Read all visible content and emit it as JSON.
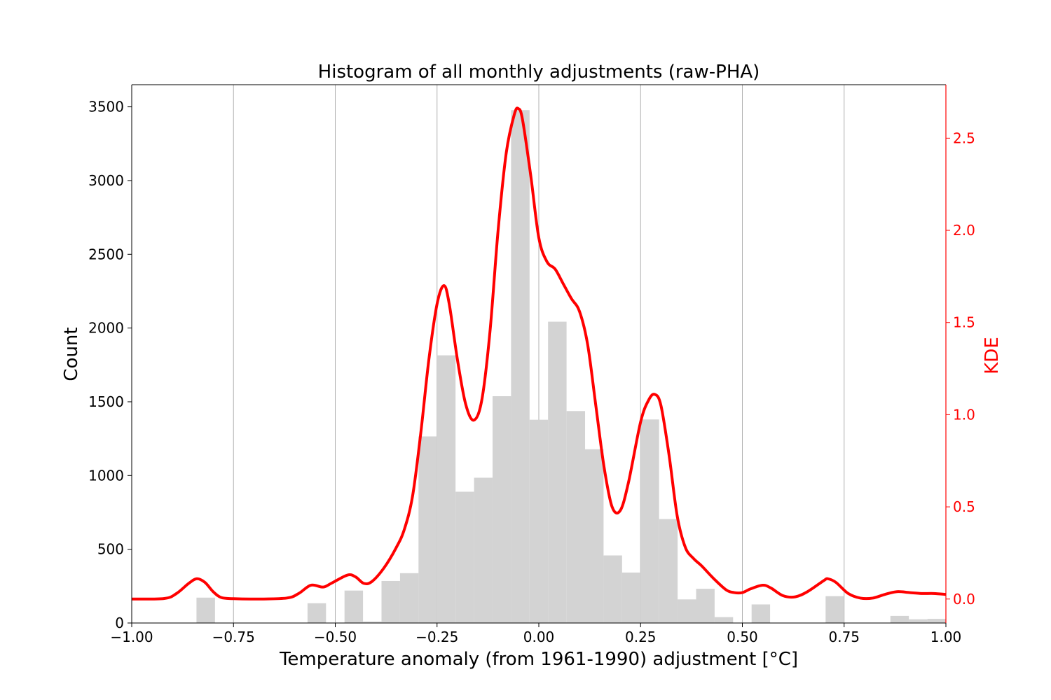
{
  "chart_data": {
    "type": "bar",
    "title": "Histogram of all monthly adjustments (raw-PHA)",
    "xlabel": "Temperature anomaly (from 1961-1990) adjustment [°C]",
    "ylabel": "Count",
    "y2label": "KDE",
    "xlim": [
      -1.0,
      1.0
    ],
    "ylim": [
      0,
      3650
    ],
    "y2lim": [
      -0.13,
      2.79
    ],
    "grid": "vertical",
    "x_ticks": [
      "−1.00",
      "−0.75",
      "−0.50",
      "−0.25",
      "0.00",
      "0.25",
      "0.50",
      "0.75",
      "1.00"
    ],
    "y_ticks": [
      "0",
      "500",
      "1000",
      "1500",
      "2000",
      "2500",
      "3000",
      "3500"
    ],
    "y2_ticks": [
      "0.0",
      "0.5",
      "1.0",
      "1.5",
      "2.0",
      "2.5"
    ],
    "colors": {
      "bars": "#d3d3d3",
      "kde": "#ff0000",
      "grid": "#b0b0b0",
      "axis": "#000000"
    },
    "series": [
      {
        "kind": "histogram",
        "bin_width": 0.04545,
        "bins": [
          {
            "x0": -0.8409,
            "count": 172
          },
          {
            "x0": -0.5682,
            "count": 134
          },
          {
            "x0": -0.4773,
            "count": 220
          },
          {
            "x0": -0.4318,
            "count": 10
          },
          {
            "x0": -0.3864,
            "count": 285
          },
          {
            "x0": -0.3409,
            "count": 338
          },
          {
            "x0": -0.2955,
            "count": 1265
          },
          {
            "x0": -0.25,
            "count": 1815
          },
          {
            "x0": -0.2045,
            "count": 890
          },
          {
            "x0": -0.1591,
            "count": 985
          },
          {
            "x0": -0.1136,
            "count": 1538
          },
          {
            "x0": -0.0682,
            "count": 3478
          },
          {
            "x0": -0.0227,
            "count": 1378
          },
          {
            "x0": 0.0227,
            "count": 2043
          },
          {
            "x0": 0.0682,
            "count": 1437
          },
          {
            "x0": 0.1136,
            "count": 1178
          },
          {
            "x0": 0.1591,
            "count": 458
          },
          {
            "x0": 0.2045,
            "count": 342
          },
          {
            "x0": 0.25,
            "count": 1380
          },
          {
            "x0": 0.2955,
            "count": 705
          },
          {
            "x0": 0.3409,
            "count": 160
          },
          {
            "x0": 0.3864,
            "count": 232
          },
          {
            "x0": 0.4318,
            "count": 40
          },
          {
            "x0": 0.5227,
            "count": 126
          },
          {
            "x0": 0.7045,
            "count": 182
          },
          {
            "x0": 0.8636,
            "count": 48
          },
          {
            "x0": 0.9091,
            "count": 25
          },
          {
            "x0": 0.9545,
            "count": 28
          },
          {
            "x0": 0.9773,
            "count": 15
          }
        ]
      },
      {
        "kind": "kde",
        "points": [
          [
            -1.0,
            0.0
          ],
          [
            -0.92,
            0.003
          ],
          [
            -0.89,
            0.03
          ],
          [
            -0.86,
            0.085
          ],
          [
            -0.84,
            0.11
          ],
          [
            -0.82,
            0.09
          ],
          [
            -0.8,
            0.04
          ],
          [
            -0.78,
            0.008
          ],
          [
            -0.75,
            0.002
          ],
          [
            -0.7,
            0.0
          ],
          [
            -0.62,
            0.005
          ],
          [
            -0.59,
            0.03
          ],
          [
            -0.56,
            0.075
          ],
          [
            -0.53,
            0.065
          ],
          [
            -0.51,
            0.085
          ],
          [
            -0.47,
            0.13
          ],
          [
            -0.45,
            0.12
          ],
          [
            -0.43,
            0.085
          ],
          [
            -0.41,
            0.095
          ],
          [
            -0.38,
            0.17
          ],
          [
            -0.35,
            0.28
          ],
          [
            -0.33,
            0.38
          ],
          [
            -0.31,
            0.56
          ],
          [
            -0.29,
            0.9
          ],
          [
            -0.27,
            1.3
          ],
          [
            -0.25,
            1.6
          ],
          [
            -0.233,
            1.7
          ],
          [
            -0.22,
            1.6
          ],
          [
            -0.2,
            1.3
          ],
          [
            -0.18,
            1.06
          ],
          [
            -0.16,
            0.97
          ],
          [
            -0.14,
            1.08
          ],
          [
            -0.12,
            1.45
          ],
          [
            -0.1,
            2.0
          ],
          [
            -0.08,
            2.42
          ],
          [
            -0.06,
            2.63
          ],
          [
            -0.05,
            2.66
          ],
          [
            -0.04,
            2.6
          ],
          [
            -0.02,
            2.3
          ],
          [
            0.0,
            1.96
          ],
          [
            0.02,
            1.83
          ],
          [
            0.04,
            1.79
          ],
          [
            0.06,
            1.71
          ],
          [
            0.08,
            1.63
          ],
          [
            0.1,
            1.56
          ],
          [
            0.12,
            1.38
          ],
          [
            0.14,
            1.05
          ],
          [
            0.16,
            0.72
          ],
          [
            0.18,
            0.5
          ],
          [
            0.2,
            0.48
          ],
          [
            0.22,
            0.63
          ],
          [
            0.25,
            0.96
          ],
          [
            0.27,
            1.08
          ],
          [
            0.285,
            1.11
          ],
          [
            0.3,
            1.05
          ],
          [
            0.32,
            0.78
          ],
          [
            0.34,
            0.45
          ],
          [
            0.36,
            0.28
          ],
          [
            0.38,
            0.22
          ],
          [
            0.4,
            0.18
          ],
          [
            0.43,
            0.11
          ],
          [
            0.46,
            0.05
          ],
          [
            0.48,
            0.035
          ],
          [
            0.5,
            0.035
          ],
          [
            0.52,
            0.055
          ],
          [
            0.55,
            0.075
          ],
          [
            0.57,
            0.06
          ],
          [
            0.6,
            0.018
          ],
          [
            0.63,
            0.012
          ],
          [
            0.66,
            0.04
          ],
          [
            0.7,
            0.1
          ],
          [
            0.71,
            0.11
          ],
          [
            0.73,
            0.09
          ],
          [
            0.76,
            0.03
          ],
          [
            0.79,
            0.005
          ],
          [
            0.82,
            0.005
          ],
          [
            0.85,
            0.025
          ],
          [
            0.88,
            0.04
          ],
          [
            0.91,
            0.035
          ],
          [
            0.94,
            0.03
          ],
          [
            0.97,
            0.03
          ],
          [
            1.0,
            0.025
          ]
        ]
      }
    ]
  }
}
